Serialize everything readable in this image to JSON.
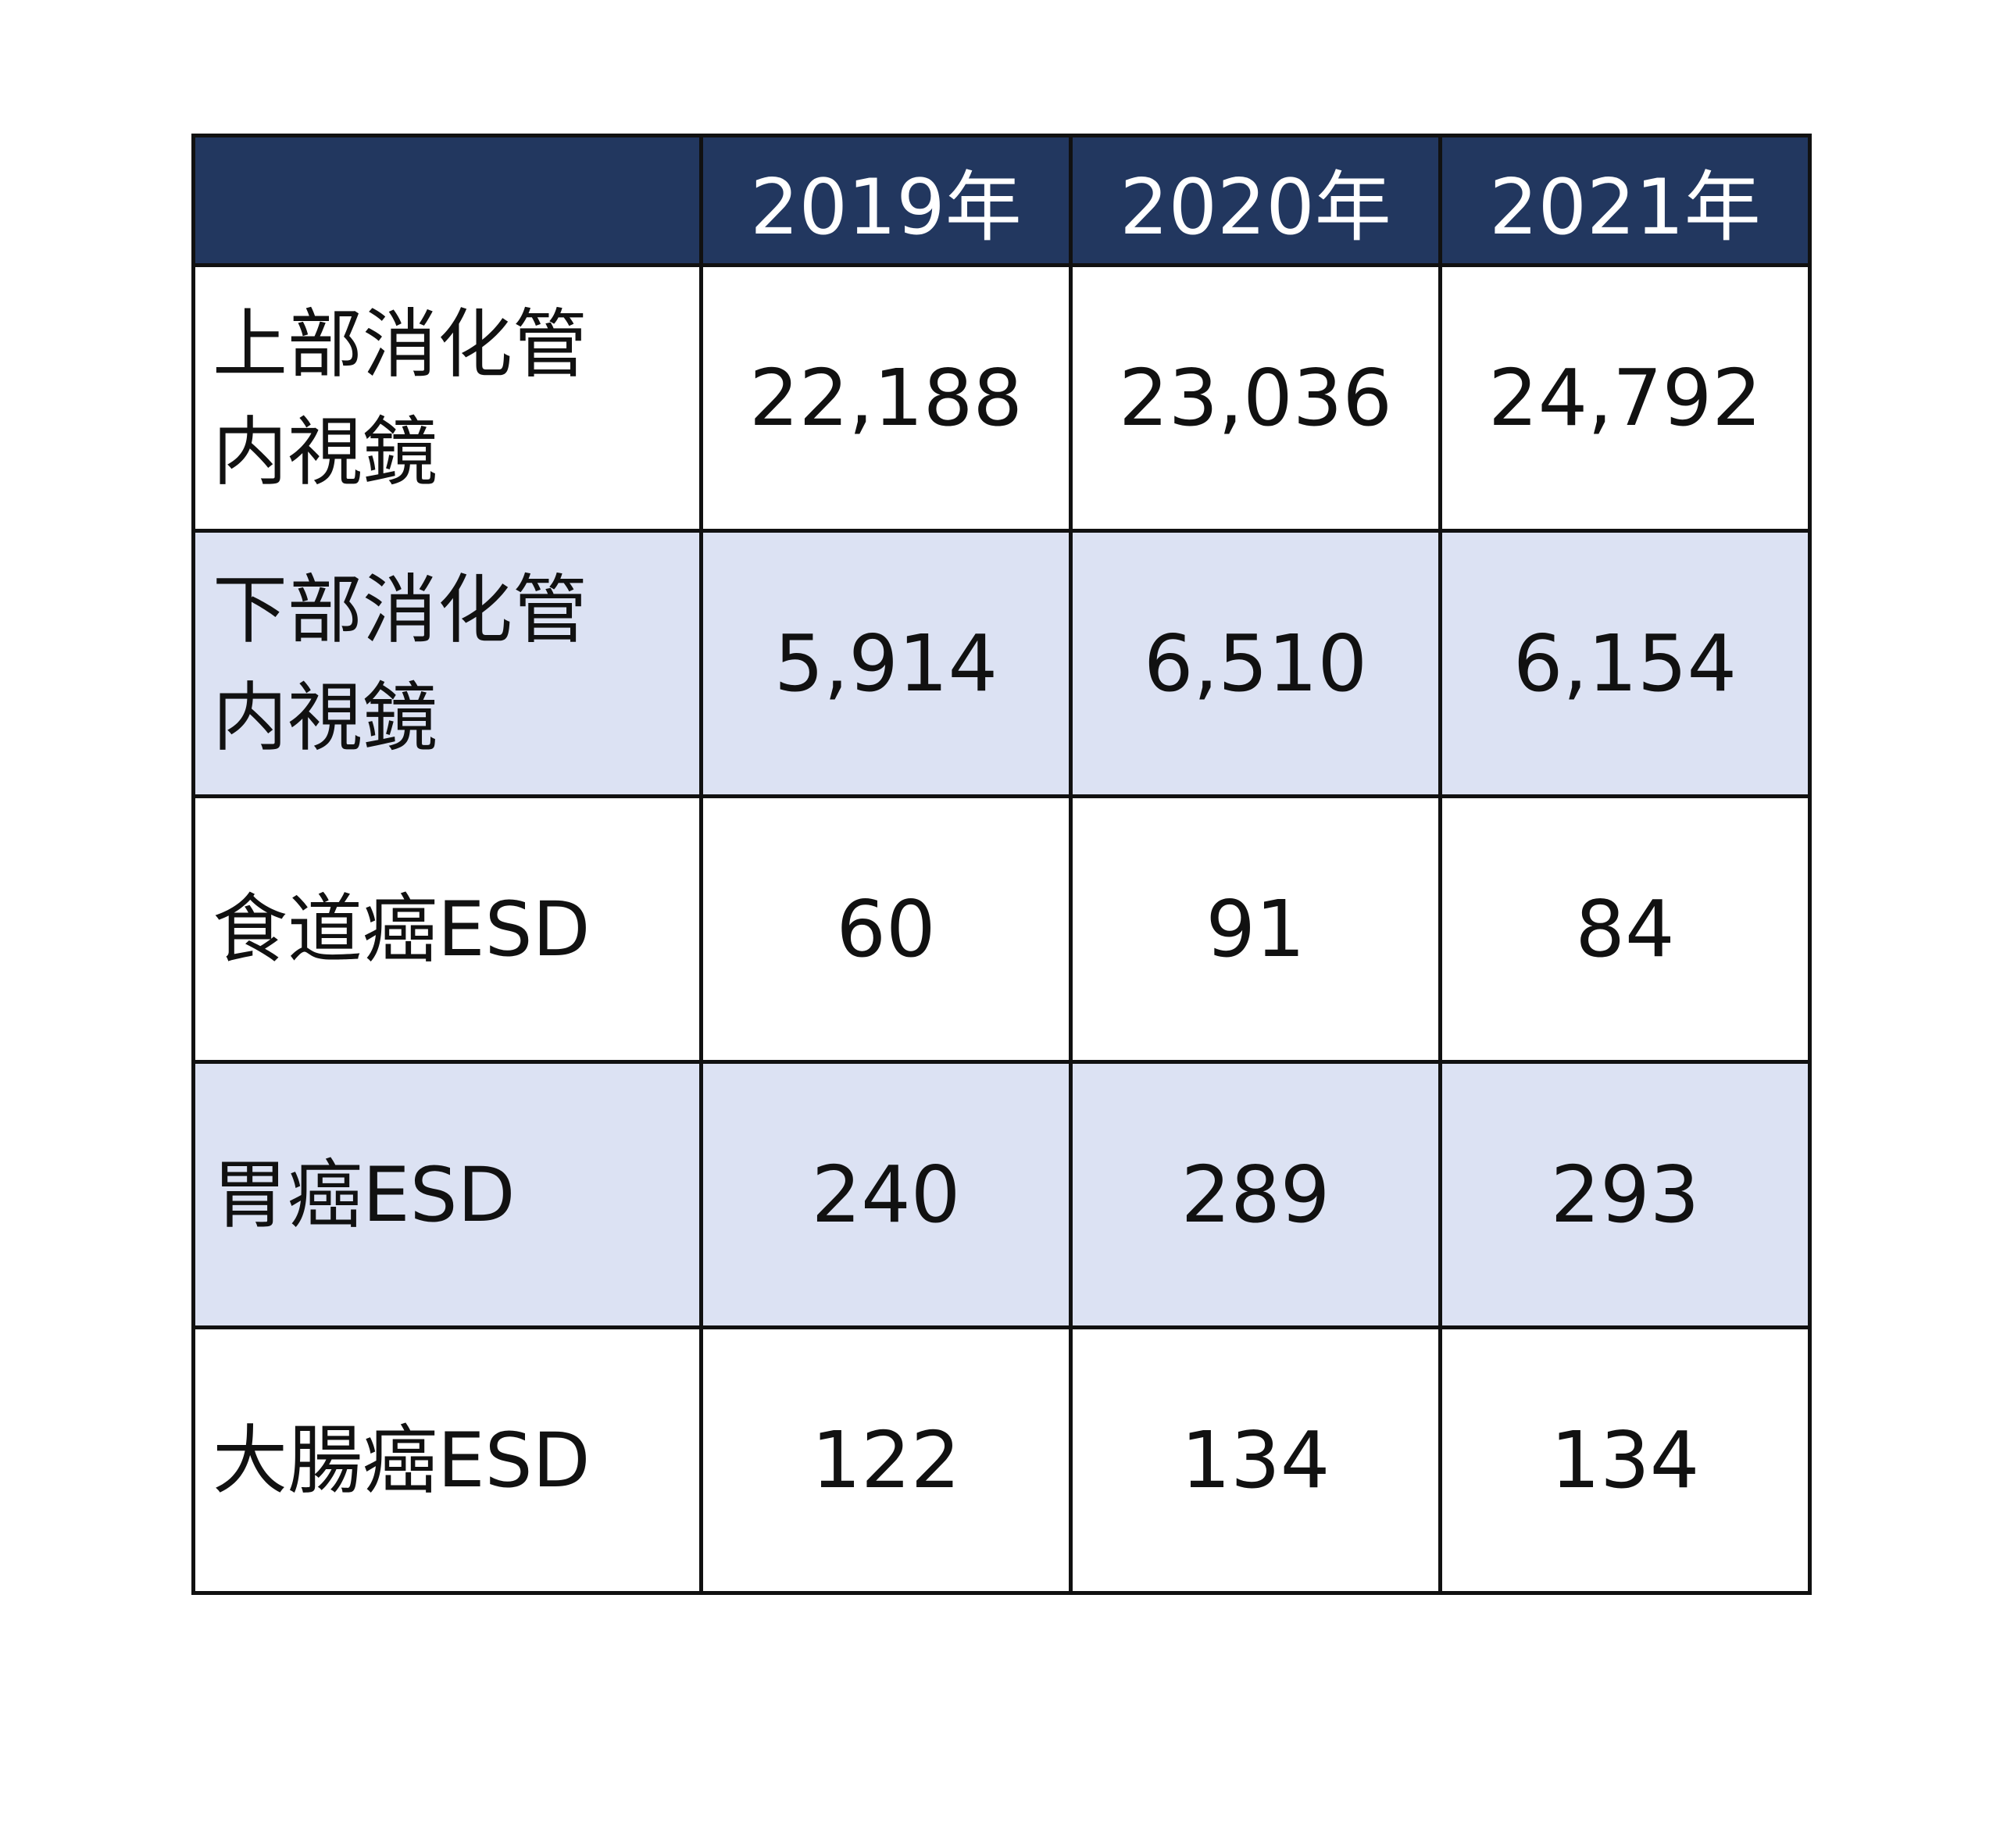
{
  "chart_data": {
    "type": "table",
    "columns": [
      "",
      "2019年",
      "2020年",
      "2021年"
    ],
    "rows": [
      {
        "label": "上部消化管\n内視鏡",
        "values": [
          "22,188",
          "23,036",
          "24,792"
        ]
      },
      {
        "label": "下部消化管\n内視鏡",
        "values": [
          "5,914",
          "6,510",
          "6,154"
        ]
      },
      {
        "label": "食道癌ESD",
        "values": [
          "60",
          "91",
          "84"
        ]
      },
      {
        "label": "胃癌ESD",
        "values": [
          "240",
          "289",
          "293"
        ]
      },
      {
        "label": "大腸癌ESD",
        "values": [
          "122",
          "134",
          "134"
        ]
      }
    ],
    "colors": {
      "header_background": "#22375f",
      "header_text": "#ffffff",
      "shaded_row_background": "#dce2f3",
      "plain_row_background": "#ffffff",
      "border": "#111111"
    }
  }
}
